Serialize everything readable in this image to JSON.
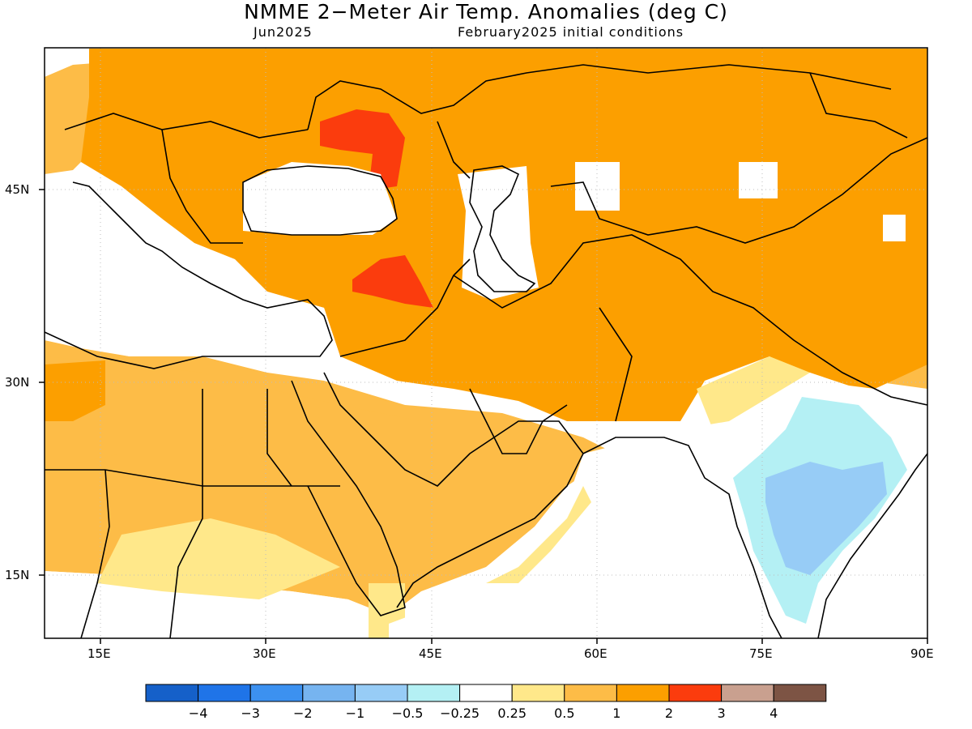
{
  "title": "NMME 2−Meter Air Temp. Anomalies (deg C)",
  "subtitle_left": "Jun2025",
  "subtitle_right": "February2025 initial conditions",
  "map": {
    "lon_range": [
      10,
      90
    ],
    "lat_range": [
      10,
      55
    ],
    "lat_labels": [
      {
        "lat": 45,
        "label": "45N"
      },
      {
        "lat": 30,
        "label": "30N"
      },
      {
        "lat": 15,
        "label": "15N"
      }
    ],
    "lon_labels": [
      {
        "lon": 15,
        "label": "15E"
      },
      {
        "lon": 30,
        "label": "30E"
      },
      {
        "lon": 45,
        "label": "45E"
      },
      {
        "lon": 60,
        "label": "60E"
      },
      {
        "lon": 75,
        "label": "75E"
      },
      {
        "lon": 90,
        "label": "90E"
      }
    ]
  },
  "colorbar": {
    "colors": [
      "#1560c9",
      "#1f74e8",
      "#3c91f0",
      "#76b4f0",
      "#97ccf6",
      "#b4f0f4",
      "#ffffff",
      "#ffe88a",
      "#fdbc47",
      "#fc9f00",
      "#fb3c0d",
      "#c9a08f",
      "#7d5444"
    ],
    "labels": [
      "−4",
      "−3",
      "−2",
      "−1",
      "−0.5",
      "−0.25",
      "0.25",
      "0.5",
      "1",
      "2",
      "3",
      "4"
    ]
  }
}
